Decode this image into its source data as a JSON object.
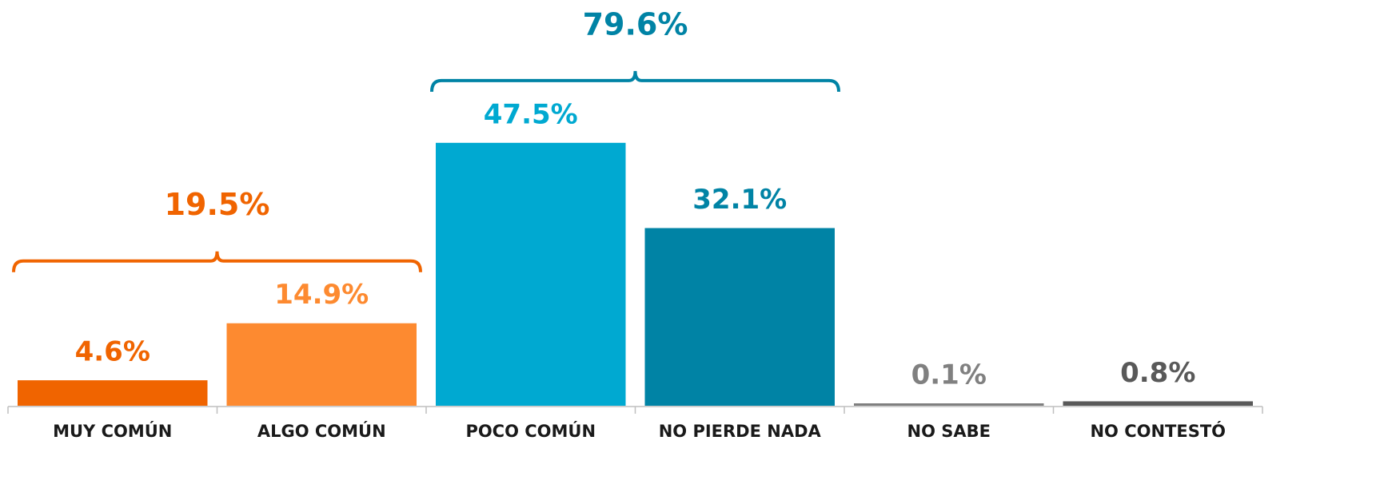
{
  "chart_data": {
    "type": "bar",
    "categories": [
      "MUY COMÚN",
      "ALGO COMÚN",
      "POCO COMÚN",
      "NO PIERDE NADA",
      "NO SABE",
      "NO CONTESTÓ"
    ],
    "values": [
      4.6,
      14.9,
      47.5,
      32.1,
      0.1,
      0.8
    ],
    "value_labels": [
      "4.6%",
      "14.9%",
      "47.5%",
      "32.1%",
      "0.1%",
      "0.8%"
    ],
    "colors": [
      "#f06400",
      "#fd8a30",
      "#00a9d1",
      "#0083a5",
      "#7f7f7f",
      "#595959"
    ],
    "label_colors": [
      "#f06400",
      "#fd8a30",
      "#00a9d1",
      "#0083a5",
      "#808080",
      "#595959"
    ],
    "groups": [
      {
        "value": 19.5,
        "label": "19.5%",
        "categories": [
          0,
          1
        ],
        "color": "#f06400"
      },
      {
        "value": 79.6,
        "label": "79.6%",
        "categories": [
          2,
          3
        ],
        "color": "#0083a5"
      }
    ]
  }
}
